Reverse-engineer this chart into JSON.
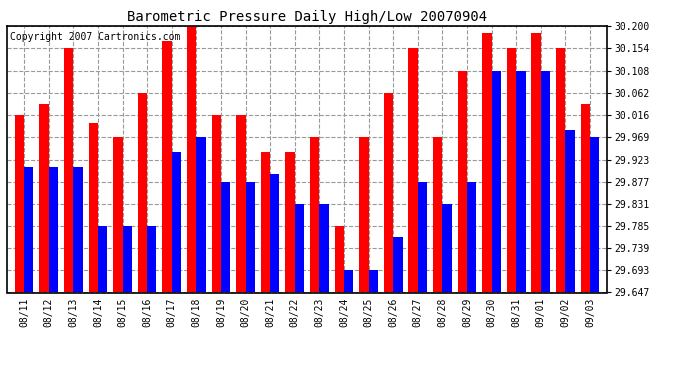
{
  "title": "Barometric Pressure Daily High/Low 20070904",
  "copyright": "Copyright 2007 Cartronics.com",
  "categories": [
    "08/11",
    "08/12",
    "08/13",
    "08/14",
    "08/15",
    "08/16",
    "08/17",
    "08/18",
    "08/19",
    "08/20",
    "08/21",
    "08/22",
    "08/23",
    "08/24",
    "08/25",
    "08/26",
    "08/27",
    "08/28",
    "08/29",
    "08/30",
    "08/31",
    "09/01",
    "09/02",
    "09/03"
  ],
  "highs": [
    30.016,
    30.039,
    30.154,
    30.0,
    29.969,
    30.062,
    30.17,
    30.2,
    30.016,
    30.016,
    29.939,
    29.939,
    29.969,
    29.785,
    29.969,
    30.062,
    30.154,
    29.969,
    30.108,
    30.185,
    30.154,
    30.185,
    30.154,
    30.039
  ],
  "lows": [
    29.908,
    29.908,
    29.908,
    29.785,
    29.785,
    29.785,
    29.939,
    29.969,
    29.877,
    29.877,
    29.893,
    29.831,
    29.831,
    29.693,
    29.693,
    29.762,
    29.877,
    29.831,
    29.877,
    30.108,
    30.108,
    30.108,
    29.985,
    29.969
  ],
  "ylim_min": 29.647,
  "ylim_max": 30.2,
  "yticks": [
    29.647,
    29.693,
    29.739,
    29.785,
    29.831,
    29.877,
    29.923,
    29.969,
    30.016,
    30.062,
    30.108,
    30.154,
    30.2
  ],
  "high_color": "#ff0000",
  "low_color": "#0000ff",
  "bg_color": "#ffffff",
  "grid_color": "#999999",
  "title_fontsize": 10,
  "tick_fontsize": 7,
  "copyright_fontsize": 7
}
